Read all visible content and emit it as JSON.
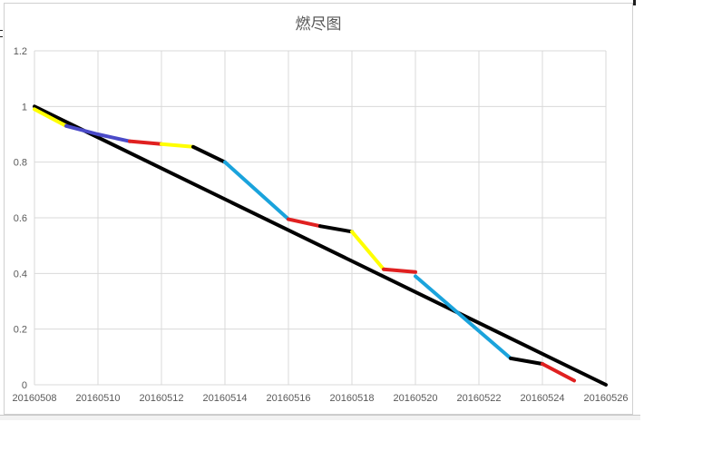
{
  "chart_data": {
    "type": "line",
    "title": "燃尽图",
    "xlabel": "",
    "ylabel": "",
    "ylim": [
      0,
      1.2
    ],
    "yticks": [
      "0",
      "0.2",
      "0.4",
      "0.6",
      "0.8",
      "1",
      "1.2"
    ],
    "x_categories": [
      "20160508",
      "20160509",
      "20160510",
      "20160511",
      "20160512",
      "20160513",
      "20160514",
      "20160515",
      "20160516",
      "20160517",
      "20160518",
      "20160519",
      "20160520",
      "20160521",
      "20160522",
      "20160523",
      "20160524",
      "20160525",
      "20160526"
    ],
    "xtick_labels": [
      "20160508",
      "20160510",
      "20160512",
      "20160514",
      "20160516",
      "20160518",
      "20160520",
      "20160522",
      "20160524",
      "20160526"
    ],
    "grid": true,
    "legend": "none",
    "series": [
      {
        "color": "#000000",
        "points": [
          [
            "20160508",
            1.0
          ],
          [
            "20160526",
            0.0
          ]
        ]
      },
      {
        "segments": [
          {
            "color": "#ffff00",
            "points": [
              [
                "20160508",
                0.99
              ],
              [
                "20160509",
                0.93
              ]
            ]
          },
          {
            "color": "#4a4ac8",
            "points": [
              [
                "20160509",
                0.93
              ],
              [
                "20160510",
                0.9
              ],
              [
                "20160511",
                0.875
              ]
            ]
          },
          {
            "color": "#e02020",
            "points": [
              [
                "20160511",
                0.875
              ],
              [
                "20160512",
                0.865
              ]
            ]
          },
          {
            "color": "#ffff00",
            "points": [
              [
                "20160512",
                0.865
              ],
              [
                "20160513",
                0.855
              ]
            ]
          },
          {
            "color": "#000000",
            "points": [
              [
                "20160513",
                0.855
              ],
              [
                "20160514",
                0.8
              ]
            ]
          },
          {
            "color": "#1aa3dc",
            "points": [
              [
                "20160514",
                0.8
              ],
              [
                "20160516",
                0.595
              ]
            ]
          },
          {
            "color": "#e02020",
            "points": [
              [
                "20160516",
                0.595
              ],
              [
                "20160517",
                0.57
              ]
            ]
          },
          {
            "color": "#000000",
            "points": [
              [
                "20160517",
                0.57
              ],
              [
                "20160518",
                0.55
              ]
            ]
          },
          {
            "color": "#ffff00",
            "points": [
              [
                "20160518",
                0.55
              ],
              [
                "20160519",
                0.415
              ]
            ]
          },
          {
            "color": "#e02020",
            "points": [
              [
                "20160519",
                0.415
              ],
              [
                "20160520",
                0.405
              ]
            ]
          },
          {
            "color": "#1aa3dc",
            "points": [
              [
                "20160520",
                0.39
              ],
              [
                "20160523",
                0.095
              ]
            ]
          },
          {
            "color": "#000000",
            "points": [
              [
                "20160523",
                0.095
              ],
              [
                "20160524",
                0.075
              ]
            ]
          },
          {
            "color": "#e02020",
            "points": [
              [
                "20160524",
                0.075
              ],
              [
                "20160525",
                0.015
              ]
            ]
          }
        ]
      }
    ]
  }
}
